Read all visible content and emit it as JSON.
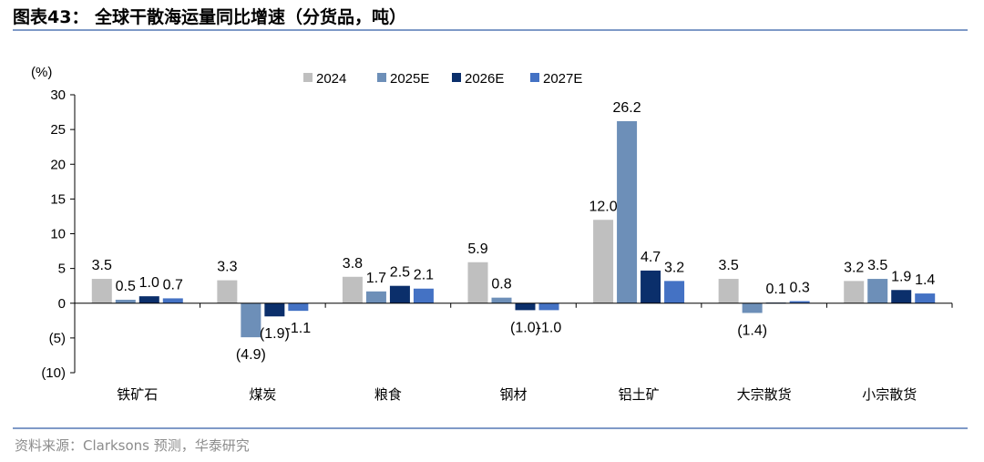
{
  "figure_title": "图表43：  全球干散海运量同比增速（分货品，吨）",
  "source_note": "资料来源：Clarksons 预测，华泰研究",
  "colors": {
    "2024": "#bfbfbf",
    "2025E": "#6d8fb8",
    "2026E": "#0b2f6b",
    "2027E": "#4472c4",
    "rule": "#7f9ac7"
  },
  "chart_data": {
    "type": "bar",
    "title": "",
    "xlabel": "",
    "ylabel": "(%)",
    "ylim": [
      -10,
      30
    ],
    "yticks": [
      -10,
      -5,
      0,
      5,
      10,
      15,
      20,
      25,
      30
    ],
    "ytick_labels": [
      "(10)",
      "(5)",
      "0",
      "5",
      "10",
      "15",
      "20",
      "25",
      "30"
    ],
    "legend_position": "top",
    "grid": false,
    "categories": [
      "铁矿石",
      "煤炭",
      "粮食",
      "钢材",
      "铝土矿",
      "大宗散货",
      "小宗散货"
    ],
    "series": [
      {
        "name": "2024",
        "values": [
          3.5,
          3.3,
          3.8,
          5.9,
          12.0,
          3.5,
          3.2
        ],
        "labels": [
          "3.5",
          "3.3",
          "3.8",
          "5.9",
          "12.0",
          "3.5",
          "3.2"
        ]
      },
      {
        "name": "2025E",
        "values": [
          0.5,
          -4.9,
          1.7,
          0.8,
          26.2,
          -1.4,
          3.5
        ],
        "labels": [
          "0.5",
          "(4.9)",
          "1.7",
          "0.8",
          "26.2",
          "(1.4)",
          "3.5"
        ]
      },
      {
        "name": "2026E",
        "values": [
          1.0,
          -1.9,
          2.5,
          -1.0,
          4.7,
          0.1,
          1.9
        ],
        "labels": [
          "1.0",
          "(1.9)",
          "2.5",
          "(1.0)",
          "4.7",
          "0.1",
          "1.9"
        ]
      },
      {
        "name": "2027E",
        "values": [
          0.7,
          -1.1,
          2.1,
          -1.0,
          3.2,
          0.3,
          1.4
        ],
        "labels": [
          "0.7",
          "-1.1",
          "2.1",
          "-1.0",
          "3.2",
          "0.3",
          "1.4"
        ]
      }
    ]
  }
}
